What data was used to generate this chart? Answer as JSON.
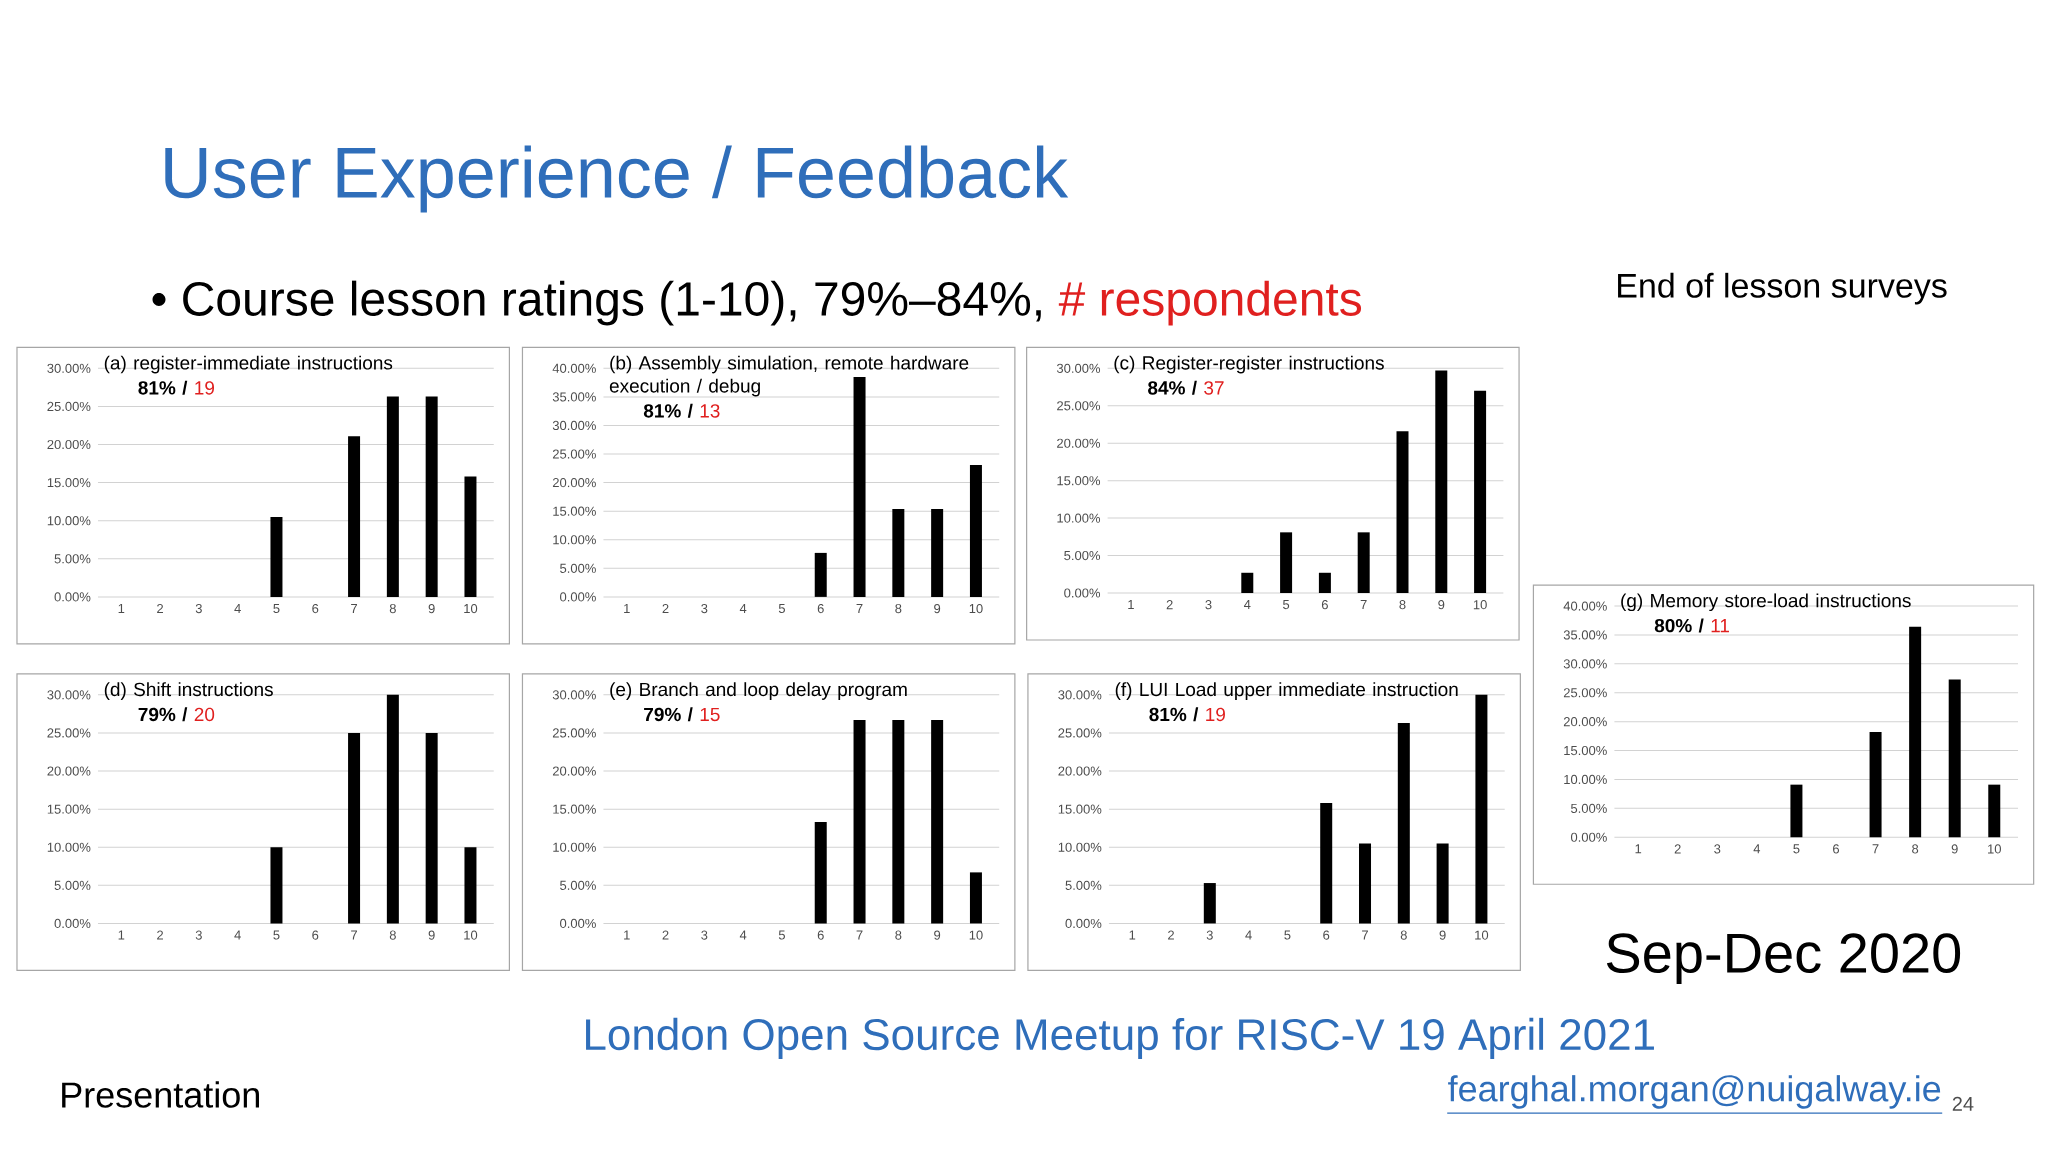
{
  "chart_data": [
    {
      "type": "other",
      "title": "User Experience / Feedback",
      "subtitle": "• Course lesson ratings (1-10), 79%–84%,",
      "annotations": [
        "# respondents",
        "End of lesson surveys",
        "Sep-Dec 2020",
        "London Open Source Meetup for RISC-V 19 April 2021",
        "Presentation",
        "fearghal.morgan@nuigalway.ie",
        "24"
      ]
    },
    {
      "type": "bar",
      "title": "(a) register-immediate instructions",
      "annotations": [
        "81% /",
        "19"
      ],
      "categories": [
        "1",
        "2",
        "3",
        "4",
        "5",
        "6",
        "7",
        "8",
        "9",
        "10"
      ],
      "values": [
        0,
        0,
        0,
        0,
        10.5,
        0,
        21.1,
        26.3,
        26.3,
        15.8
      ],
      "color": "#000000",
      "ylim": [
        0,
        30
      ],
      "yticks": [
        {
          "value": 0,
          "label": "0.00%"
        },
        {
          "value": 5,
          "label": "5.00%"
        },
        {
          "value": 10,
          "label": "10.00%"
        },
        {
          "value": 15,
          "label": "15.00%"
        },
        {
          "value": 20,
          "label": "20.00%"
        },
        {
          "value": 25,
          "label": "25.00%"
        },
        {
          "value": 30,
          "label": "30.00%"
        }
      ],
      "grid": "y"
    },
    {
      "type": "bar",
      "title": "(b) Assembly simulation, remote hardware execution / debug",
      "annotations": [
        "81% /",
        "13"
      ],
      "categories": [
        "1",
        "2",
        "3",
        "4",
        "5",
        "6",
        "7",
        "8",
        "9",
        "10"
      ],
      "values": [
        0,
        0,
        0,
        0,
        0,
        7.7,
        38.5,
        15.4,
        15.4,
        23.1
      ],
      "color": "#000000",
      "ylim": [
        0,
        40
      ],
      "yticks": [
        {
          "value": 0,
          "label": "0.00%"
        },
        {
          "value": 5,
          "label": "5.00%"
        },
        {
          "value": 10,
          "label": "10.00%"
        },
        {
          "value": 15,
          "label": "15.00%"
        },
        {
          "value": 20,
          "label": "20.00%"
        },
        {
          "value": 25,
          "label": "25.00%"
        },
        {
          "value": 30,
          "label": "30.00%"
        },
        {
          "value": 35,
          "label": "35.00%"
        },
        {
          "value": 40,
          "label": "40.00%"
        }
      ],
      "grid": "y"
    },
    {
      "type": "bar",
      "title": "(c) Register-register instructions",
      "annotations": [
        "84% /",
        "37"
      ],
      "categories": [
        "1",
        "2",
        "3",
        "4",
        "5",
        "6",
        "7",
        "8",
        "9",
        "10"
      ],
      "values": [
        0,
        0,
        0,
        2.7,
        8.1,
        2.7,
        8.1,
        21.6,
        29.7,
        27.0
      ],
      "color": "#000000",
      "ylim": [
        0,
        30
      ],
      "yticks": [
        {
          "value": 0,
          "label": "0.00%"
        },
        {
          "value": 5,
          "label": "5.00%"
        },
        {
          "value": 10,
          "label": "10.00%"
        },
        {
          "value": 15,
          "label": "15.00%"
        },
        {
          "value": 20,
          "label": "20.00%"
        },
        {
          "value": 25,
          "label": "25.00%"
        },
        {
          "value": 30,
          "label": "30.00%"
        }
      ],
      "grid": "y"
    },
    {
      "type": "bar",
      "title": "(d) Shift instructions",
      "annotations": [
        "79% /",
        "20"
      ],
      "categories": [
        "1",
        "2",
        "3",
        "4",
        "5",
        "6",
        "7",
        "8",
        "9",
        "10"
      ],
      "values": [
        0,
        0,
        0,
        0,
        10,
        0,
        25,
        30,
        25,
        10
      ],
      "color": "#000000",
      "ylim": [
        0,
        30
      ],
      "yticks": [
        {
          "value": 0,
          "label": "0.00%"
        },
        {
          "value": 5,
          "label": "5.00%"
        },
        {
          "value": 10,
          "label": "10.00%"
        },
        {
          "value": 15,
          "label": "15.00%"
        },
        {
          "value": 20,
          "label": "20.00%"
        },
        {
          "value": 25,
          "label": "25.00%"
        },
        {
          "value": 30,
          "label": "30.00%"
        }
      ],
      "grid": "y"
    },
    {
      "type": "bar",
      "title": "(e) Branch and loop delay program",
      "annotations": [
        "79% /",
        "15"
      ],
      "categories": [
        "1",
        "2",
        "3",
        "4",
        "5",
        "6",
        "7",
        "8",
        "9",
        "10"
      ],
      "values": [
        0,
        0,
        0,
        0,
        0,
        13.3,
        26.7,
        26.7,
        26.7,
        6.7
      ],
      "color": "#000000",
      "ylim": [
        0,
        30
      ],
      "yticks": [
        {
          "value": 0,
          "label": "0.00%"
        },
        {
          "value": 5,
          "label": "5.00%"
        },
        {
          "value": 10,
          "label": "10.00%"
        },
        {
          "value": 15,
          "label": "15.00%"
        },
        {
          "value": 20,
          "label": "20.00%"
        },
        {
          "value": 25,
          "label": "25.00%"
        },
        {
          "value": 30,
          "label": "30.00%"
        }
      ],
      "grid": "y"
    },
    {
      "type": "bar",
      "title": "(f) LUI Load upper immediate instruction",
      "annotations": [
        "81% /",
        "19"
      ],
      "categories": [
        "1",
        "2",
        "3",
        "4",
        "5",
        "6",
        "7",
        "8",
        "9",
        "10"
      ],
      "values": [
        0,
        0,
        5.3,
        0,
        0,
        15.8,
        10.5,
        26.3,
        10.5,
        30
      ],
      "color": "#000000",
      "ylim": [
        0,
        30
      ],
      "yticks": [
        {
          "value": 0,
          "label": "0.00%"
        },
        {
          "value": 5,
          "label": "5.00%"
        },
        {
          "value": 10,
          "label": "10.00%"
        },
        {
          "value": 15,
          "label": "15.00%"
        },
        {
          "value": 20,
          "label": "20.00%"
        },
        {
          "value": 25,
          "label": "25.00%"
        },
        {
          "value": 30,
          "label": "30.00%"
        }
      ],
      "grid": "y"
    },
    {
      "type": "bar",
      "title": "(g) Memory store-load instructions",
      "annotations": [
        "80% /",
        "11"
      ],
      "categories": [
        "1",
        "2",
        "3",
        "4",
        "5",
        "6",
        "7",
        "8",
        "9",
        "10"
      ],
      "values": [
        0,
        0,
        0,
        0,
        9.1,
        0,
        18.2,
        36.4,
        27.3,
        9.1
      ],
      "color": "#000000",
      "ylim": [
        0,
        40
      ],
      "yticks": [
        {
          "value": 0,
          "label": "0.00%"
        },
        {
          "value": 5,
          "label": "5.00%"
        },
        {
          "value": 10,
          "label": "10.00%"
        },
        {
          "value": 15,
          "label": "15.00%"
        },
        {
          "value": 20,
          "label": "20.00%"
        },
        {
          "value": 25,
          "label": "25.00%"
        },
        {
          "value": 30,
          "label": "30.00%"
        },
        {
          "value": 35,
          "label": "35.00%"
        },
        {
          "value": 40,
          "label": "40.00%"
        }
      ],
      "grid": "y"
    }
  ]
}
